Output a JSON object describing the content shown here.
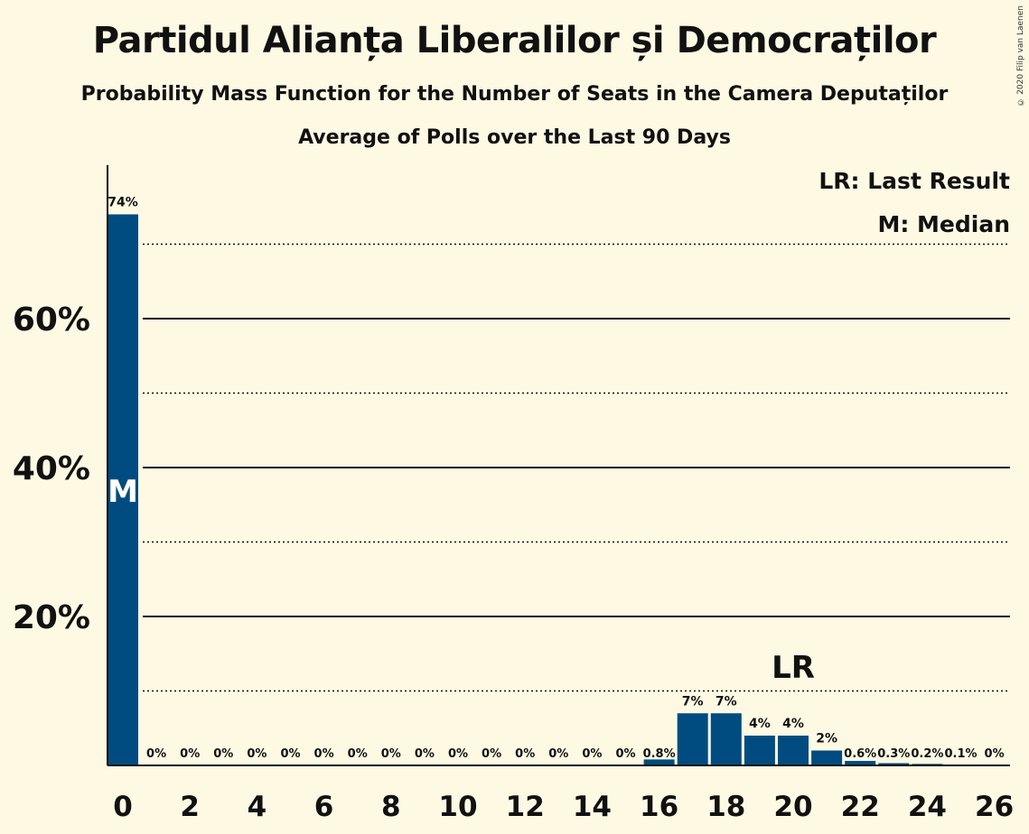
{
  "title": "Partidul Alianța Liberalilor și Democraților",
  "subtitle": "Probability Mass Function for the Number of Seats in the Camera Deputaților",
  "subtitle2": "Average of Polls over the Last 90 Days",
  "copyright": "© 2020 Filip van Laenen",
  "legend": {
    "last_result": "LR: Last Result",
    "median": "M: Median"
  },
  "colors": {
    "bar": "#004c80",
    "background": "#fdf9e3"
  },
  "chart_data": {
    "type": "bar",
    "x": [
      0,
      1,
      2,
      3,
      4,
      5,
      6,
      7,
      8,
      9,
      10,
      11,
      12,
      13,
      14,
      15,
      16,
      17,
      18,
      19,
      20,
      21,
      22,
      23,
      24,
      25,
      26
    ],
    "values": [
      74,
      0,
      0,
      0,
      0,
      0,
      0,
      0,
      0,
      0,
      0,
      0,
      0,
      0,
      0,
      0,
      0.8,
      7,
      7,
      4,
      4,
      2,
      0.6,
      0.3,
      0.2,
      0.1,
      0
    ],
    "labels": [
      "74%",
      "0%",
      "0%",
      "0%",
      "0%",
      "0%",
      "0%",
      "0%",
      "0%",
      "0%",
      "0%",
      "0%",
      "0%",
      "0%",
      "0%",
      "0%",
      "0.8%",
      "7%",
      "7%",
      "4%",
      "4%",
      "2%",
      "0.6%",
      "0.3%",
      "0.2%",
      "0.1%",
      "0%"
    ],
    "x_tick_labels": [
      "0",
      "2",
      "4",
      "6",
      "8",
      "10",
      "12",
      "14",
      "16",
      "18",
      "20",
      "22",
      "24",
      "26"
    ],
    "y_tick_labels": [
      "20%",
      "40%",
      "60%"
    ],
    "ylim": [
      0,
      80
    ],
    "y_major_gridlines": [
      20,
      40,
      60
    ],
    "y_minor_gridlines": [
      10,
      30,
      50,
      70
    ],
    "median_seat": 0,
    "median_marker": "M",
    "last_result_seat": 20,
    "last_result_marker": "LR"
  }
}
